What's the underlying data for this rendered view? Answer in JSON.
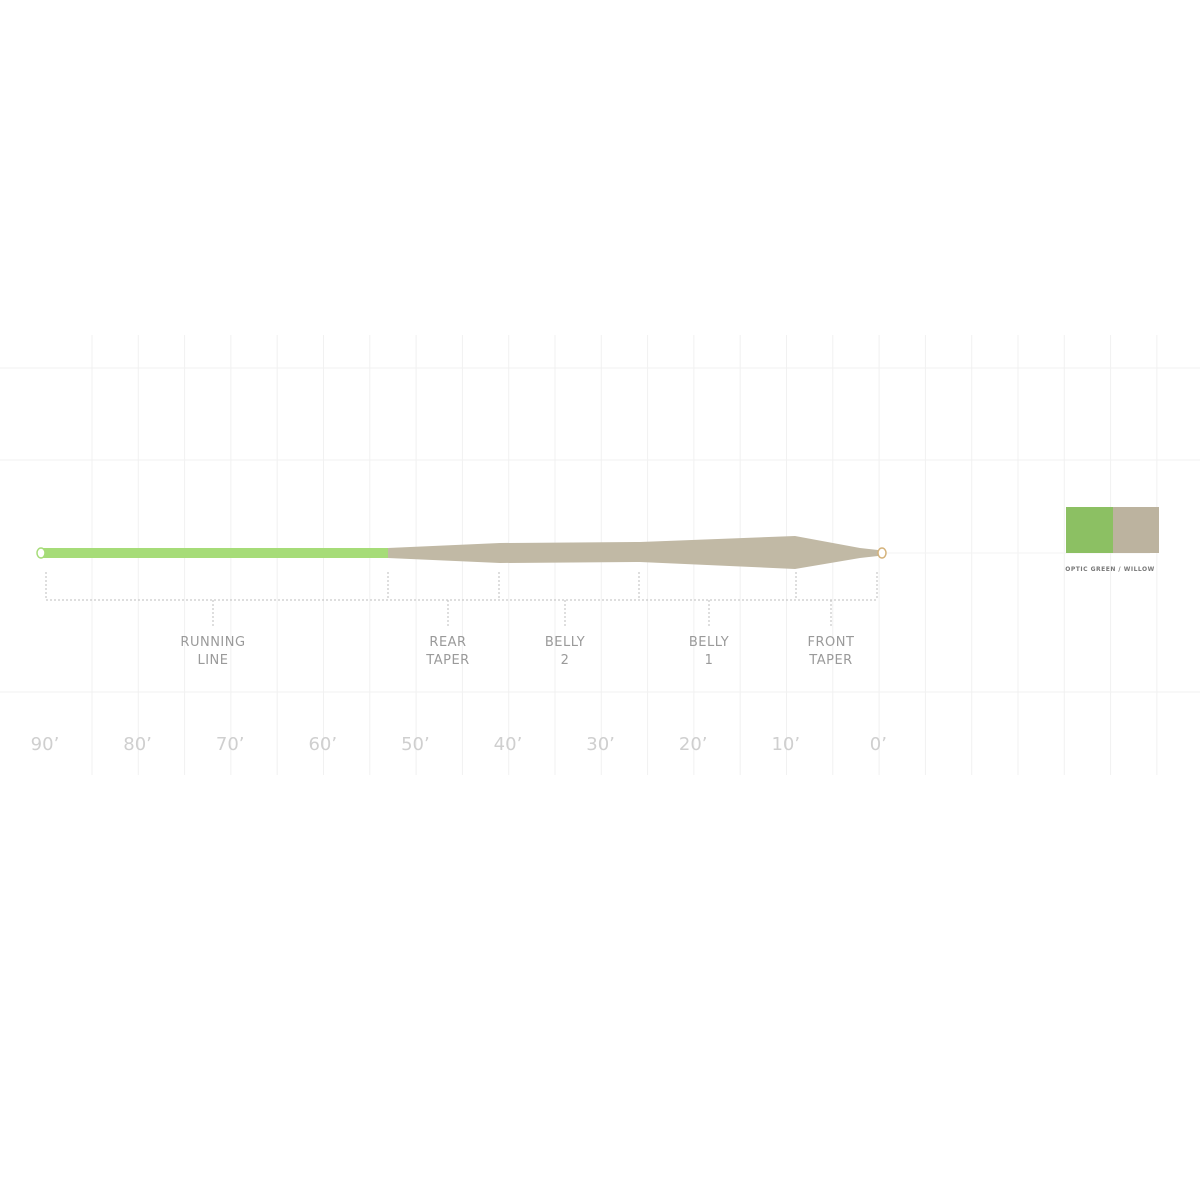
{
  "axis_labels": [
    "90’",
    "80’",
    "70’",
    "60’",
    "50’",
    "40’",
    "30’",
    "20’",
    "10’",
    "0’"
  ],
  "segments": [
    {
      "lines": [
        "RUNNING",
        "LINE"
      ]
    },
    {
      "lines": [
        "REAR",
        "TAPER"
      ]
    },
    {
      "lines": [
        "BELLY",
        "2"
      ]
    },
    {
      "lines": [
        "BELLY",
        "1"
      ]
    },
    {
      "lines": [
        "FRONT",
        "TAPER"
      ]
    }
  ],
  "legend": {
    "label": "OPTIC GREEN / WILLOW"
  }
}
